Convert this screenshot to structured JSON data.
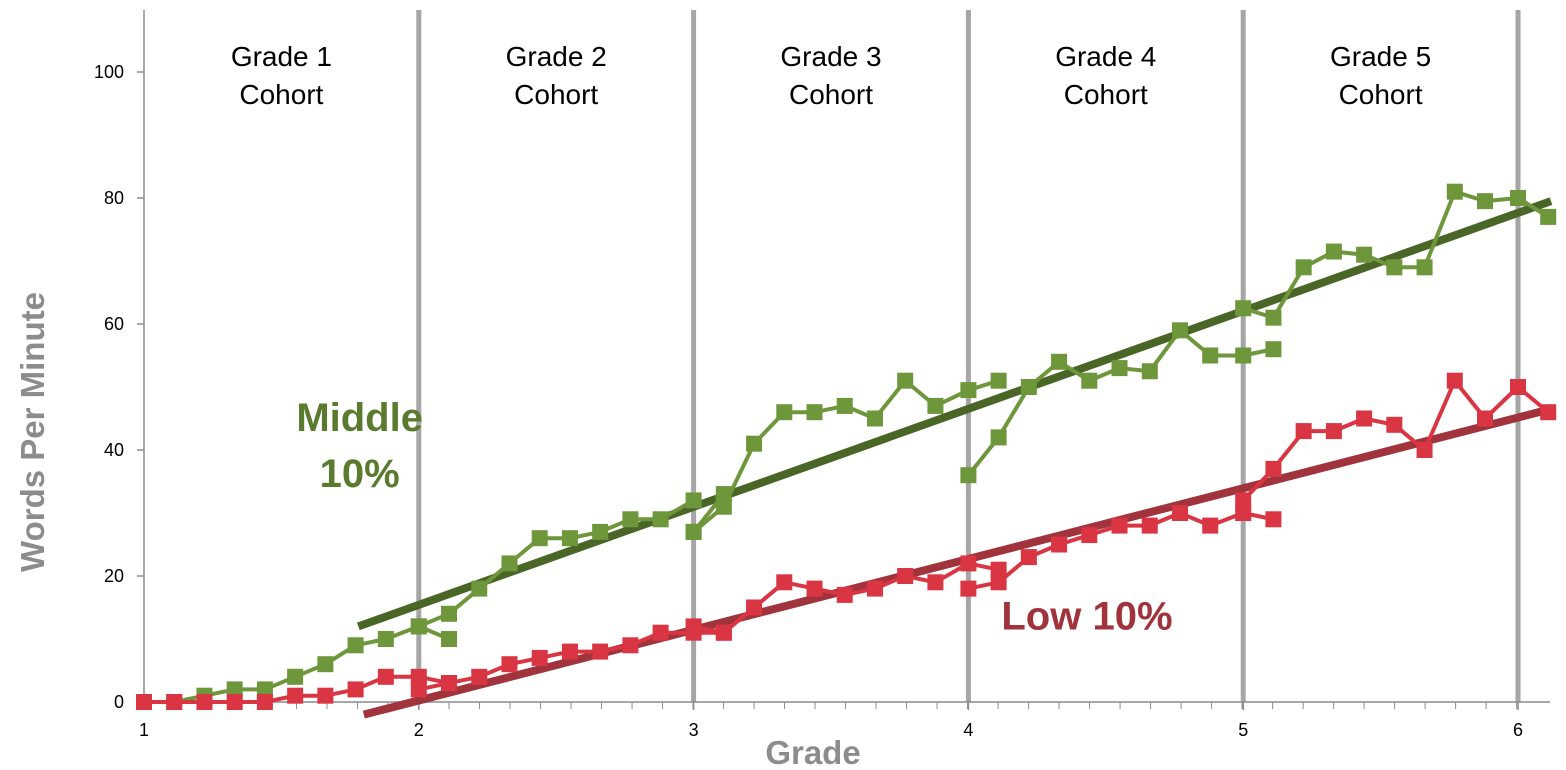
{
  "chart_data": {
    "type": "line",
    "xlabel": "Grade",
    "ylabel": "Words Per Minute",
    "xlim": [
      1,
      6.15
    ],
    "ylim": [
      0,
      110
    ],
    "x_ticks": [
      1,
      2,
      3,
      4,
      5,
      6
    ],
    "y_ticks": [
      0,
      20,
      40,
      60,
      80,
      100
    ],
    "cohorts": [
      {
        "line1": "Grade 1",
        "line2": "Cohort",
        "x_from": 1,
        "x_to": 2
      },
      {
        "line1": "Grade 2",
        "line2": "Cohort",
        "x_from": 2,
        "x_to": 3
      },
      {
        "line1": "Grade 3",
        "line2": "Cohort",
        "x_from": 3,
        "x_to": 4
      },
      {
        "line1": "Grade 4",
        "line2": "Cohort",
        "x_from": 4,
        "x_to": 5
      },
      {
        "line1": "Grade 5",
        "line2": "Cohort",
        "x_from": 5,
        "x_to": 6.0
      }
    ],
    "dividers": [
      2,
      3,
      4,
      5,
      6.0
    ],
    "series": [
      {
        "name": "Middle 10%",
        "color": "#6e963a",
        "trend_color": "#4a6627",
        "label_lines": [
          "Middle",
          "10%"
        ],
        "label_anchor": {
          "x": 1.45,
          "y": 43
        },
        "trend": {
          "x": [
            1.78,
            6.12
          ],
          "y": [
            12,
            79.5
          ]
        },
        "segments": [
          {
            "x": [
              1.0,
              1.11,
              1.22,
              1.33,
              1.44,
              1.55,
              1.66,
              1.77,
              1.88,
              2.0,
              2.11
            ],
            "y": [
              0,
              0,
              1,
              2,
              2,
              4,
              6,
              9,
              10,
              12,
              10
            ]
          },
          {
            "x": [
              2.0,
              2.11,
              2.22,
              2.33,
              2.44,
              2.55,
              2.66,
              2.77,
              2.88,
              3.0
            ],
            "y": [
              12,
              14,
              18,
              22,
              26,
              26,
              27,
              29,
              29,
              32
            ]
          },
          {
            "x": [
              3.0,
              3.11
            ],
            "y": [
              27,
              33
            ]
          },
          {
            "x": [
              3.0,
              3.11,
              3.22,
              3.33,
              3.44,
              3.55,
              3.66,
              3.77,
              3.88,
              4.0,
              4.11
            ],
            "y": [
              27,
              31,
              41,
              46,
              46,
              47,
              45,
              51,
              47,
              49.5,
              51
            ]
          },
          {
            "x": [
              4.0,
              4.11,
              4.22,
              4.33,
              4.44,
              4.55,
              4.66,
              4.77,
              4.88,
              5.0,
              5.11
            ],
            "y": [
              36,
              42,
              50,
              54,
              51,
              53,
              52.5,
              59,
              55,
              55,
              56
            ]
          },
          {
            "x": [
              5.0,
              5.11,
              5.22,
              5.33,
              5.44,
              5.55,
              5.66,
              5.77,
              5.88,
              6.0,
              6.11
            ],
            "y": [
              62.5,
              61,
              69,
              71.5,
              71,
              69,
              69,
              81,
              79.5,
              80,
              77
            ]
          }
        ]
      },
      {
        "name": "Low 10%",
        "color": "#d93543",
        "trend_color": "#a0333c",
        "label_lines": [
          "Low 10%"
        ],
        "label_anchor": {
          "x": 4.12,
          "y": 11.5
        },
        "trend": {
          "x": [
            1.8,
            6.12
          ],
          "y": [
            -2,
            46.5
          ]
        },
        "segments": [
          {
            "x": [
              1.0,
              1.11,
              1.22,
              1.33,
              1.44,
              1.55,
              1.66,
              1.77,
              1.88,
              2.0,
              2.11
            ],
            "y": [
              0,
              0,
              0,
              0,
              0,
              1,
              1,
              2,
              4,
              4,
              3
            ]
          },
          {
            "x": [
              2.0,
              2.11,
              2.22,
              2.33,
              2.44,
              2.55,
              2.66,
              2.77,
              2.88,
              3.0,
              3.11
            ],
            "y": [
              2,
              3,
              4,
              6,
              7,
              8,
              8,
              9,
              11,
              11,
              11
            ]
          },
          {
            "x": [
              3.0,
              3.11,
              3.22,
              3.33,
              3.44,
              3.55,
              3.66,
              3.77,
              3.88,
              4.0,
              4.11
            ],
            "y": [
              12,
              11,
              15,
              19,
              18,
              17,
              18,
              20,
              19,
              22,
              21
            ]
          },
          {
            "x": [
              4.0,
              4.11,
              4.22,
              4.33,
              4.44,
              4.55,
              4.66,
              4.77,
              4.88,
              5.0,
              5.11
            ],
            "y": [
              18,
              19,
              23,
              25,
              26.5,
              28,
              28,
              30,
              28,
              30,
              29
            ]
          },
          {
            "x": [
              5.0,
              5.11,
              5.22,
              5.33,
              5.44,
              5.55,
              5.66,
              5.77,
              5.88,
              6.0,
              6.11
            ],
            "y": [
              32,
              37,
              43,
              43,
              45,
              44,
              40,
              51,
              45,
              50,
              46
            ]
          }
        ]
      }
    ]
  }
}
